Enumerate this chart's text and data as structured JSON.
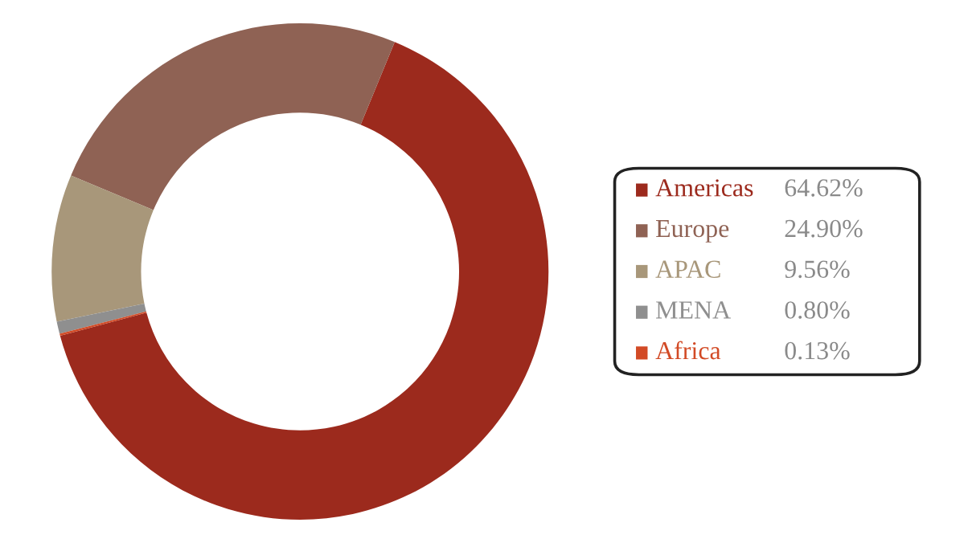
{
  "chart_data": {
    "type": "donut",
    "categories": [
      "Americas",
      "Europe",
      "APAC",
      "MENA",
      "Africa"
    ],
    "values": [
      64.62,
      24.9,
      9.56,
      0.8,
      0.13
    ],
    "colors": [
      "#9c2a1d",
      "#8f6254",
      "#a8977a",
      "#8f8f8f",
      "#d24a25"
    ],
    "value_labels": [
      "64.62%",
      "24.90%",
      "9.56%",
      "0.80%",
      "0.13%"
    ],
    "legend": "right"
  }
}
